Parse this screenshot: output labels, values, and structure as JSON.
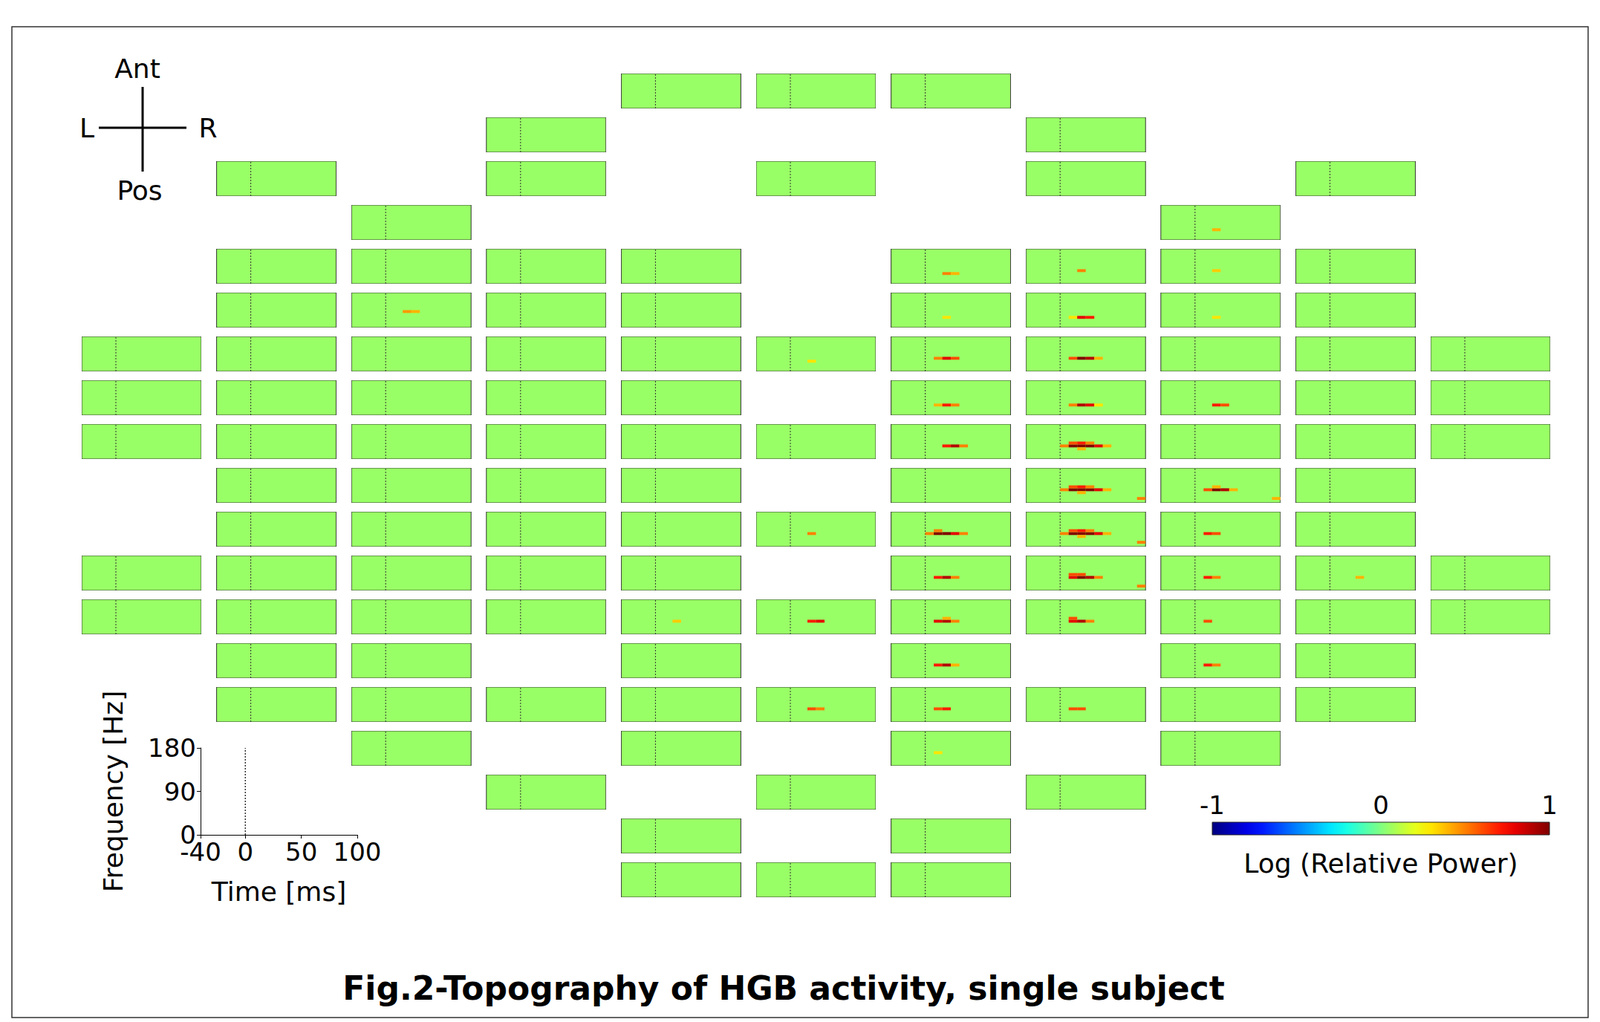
{
  "chart_data": {
    "type": "heatmap",
    "title": "Fig.2-Topography of HGB activity, single subject",
    "x_label": "Time [ms]",
    "y_label": "Frequency [Hz]",
    "xlim": [
      -40,
      100
    ],
    "xticks": [
      -40,
      0,
      50,
      100
    ],
    "ylim": [
      0,
      180
    ],
    "yticks": [
      0,
      90,
      180
    ],
    "onset": 0,
    "time_bins": [
      -40,
      -30,
      -20,
      -10,
      0,
      10,
      20,
      30,
      40,
      50,
      60,
      70,
      80,
      90,
      100
    ],
    "freq_bins": [
      0,
      15,
      30,
      45,
      60,
      75,
      90,
      105,
      120,
      135,
      150,
      165,
      180
    ],
    "fill": 0.05,
    "colorbar": {
      "label": "Log (Relative Power)",
      "range": [
        -1,
        1
      ],
      "ticks": [
        -1,
        0,
        1
      ]
    },
    "orientation": {
      "anterior": "Ant",
      "posterior": "Pos",
      "left": "L",
      "right": "R"
    },
    "panels": [
      {
        "row": 0,
        "col": 4
      },
      {
        "row": 0,
        "col": 5
      },
      {
        "row": 0,
        "col": 6
      },
      {
        "row": 1,
        "col": 3
      },
      {
        "row": 1,
        "col": 7
      },
      {
        "row": 2,
        "col": 1
      },
      {
        "row": 2,
        "col": 3
      },
      {
        "row": 2,
        "col": 5
      },
      {
        "row": 2,
        "col": 7
      },
      {
        "row": 2,
        "col": 9
      },
      {
        "row": 3,
        "col": 2
      },
      {
        "row": 3,
        "col": 8,
        "cells": [
          [
            20,
            45,
            0.4
          ]
        ]
      },
      {
        "row": 4,
        "col": 1
      },
      {
        "row": 4,
        "col": 2
      },
      {
        "row": 4,
        "col": 3
      },
      {
        "row": 4,
        "col": 4
      },
      {
        "row": 4,
        "col": 6,
        "cells": [
          [
            20,
            45,
            0.5
          ],
          [
            30,
            45,
            0.4
          ]
        ]
      },
      {
        "row": 4,
        "col": 7,
        "cells": [
          [
            20,
            60,
            0.5
          ]
        ]
      },
      {
        "row": 4,
        "col": 8,
        "cells": [
          [
            20,
            60,
            0.35
          ]
        ]
      },
      {
        "row": 4,
        "col": 9
      },
      {
        "row": 5,
        "col": 1
      },
      {
        "row": 5,
        "col": 2,
        "cells": [
          [
            20,
            75,
            0.45
          ],
          [
            30,
            75,
            0.4
          ]
        ]
      },
      {
        "row": 5,
        "col": 3
      },
      {
        "row": 5,
        "col": 4
      },
      {
        "row": 5,
        "col": 6,
        "cells": [
          [
            20,
            45,
            0.3
          ]
        ]
      },
      {
        "row": 5,
        "col": 7,
        "cells": [
          [
            10,
            45,
            0.3
          ],
          [
            20,
            45,
            0.8
          ],
          [
            30,
            45,
            0.7
          ]
        ]
      },
      {
        "row": 5,
        "col": 8,
        "cells": [
          [
            20,
            45,
            0.3
          ]
        ]
      },
      {
        "row": 5,
        "col": 9
      },
      {
        "row": 6,
        "col": 0
      },
      {
        "row": 6,
        "col": 1
      },
      {
        "row": 6,
        "col": 2
      },
      {
        "row": 6,
        "col": 3
      },
      {
        "row": 6,
        "col": 4
      },
      {
        "row": 6,
        "col": 5,
        "cells": [
          [
            20,
            45,
            0.3
          ]
        ]
      },
      {
        "row": 6,
        "col": 6,
        "cells": [
          [
            10,
            60,
            0.5
          ],
          [
            20,
            60,
            0.8
          ],
          [
            30,
            60,
            0.6
          ]
        ]
      },
      {
        "row": 6,
        "col": 7,
        "cells": [
          [
            10,
            60,
            0.6
          ],
          [
            20,
            60,
            1
          ],
          [
            30,
            60,
            0.9
          ],
          [
            40,
            60,
            0.4
          ]
        ]
      },
      {
        "row": 6,
        "col": 8
      },
      {
        "row": 6,
        "col": 9
      },
      {
        "row": 6,
        "col": 10
      },
      {
        "row": 7,
        "col": 0
      },
      {
        "row": 7,
        "col": 1
      },
      {
        "row": 7,
        "col": 2
      },
      {
        "row": 7,
        "col": 3
      },
      {
        "row": 7,
        "col": 4
      },
      {
        "row": 7,
        "col": 6,
        "cells": [
          [
            10,
            45,
            0.4
          ],
          [
            20,
            45,
            0.7
          ],
          [
            30,
            45,
            0.5
          ]
        ]
      },
      {
        "row": 7,
        "col": 7,
        "cells": [
          [
            10,
            45,
            0.5
          ],
          [
            20,
            45,
            0.9
          ],
          [
            30,
            45,
            0.8
          ],
          [
            40,
            45,
            0.3
          ]
        ]
      },
      {
        "row": 7,
        "col": 8,
        "cells": [
          [
            20,
            45,
            0.7
          ],
          [
            30,
            45,
            0.6
          ]
        ]
      },
      {
        "row": 7,
        "col": 9
      },
      {
        "row": 7,
        "col": 10
      },
      {
        "row": 8,
        "col": 0
      },
      {
        "row": 8,
        "col": 1
      },
      {
        "row": 8,
        "col": 2
      },
      {
        "row": 8,
        "col": 3
      },
      {
        "row": 8,
        "col": 4
      },
      {
        "row": 8,
        "col": 5
      },
      {
        "row": 8,
        "col": 6,
        "cells": [
          [
            20,
            60,
            0.7
          ],
          [
            30,
            60,
            0.9
          ],
          [
            40,
            60,
            0.5
          ]
        ]
      },
      {
        "row": 8,
        "col": 7,
        "cells": [
          [
            0,
            60,
            0.5
          ],
          [
            10,
            60,
            1
          ],
          [
            20,
            60,
            1
          ],
          [
            30,
            60,
            1
          ],
          [
            40,
            60,
            0.8
          ],
          [
            50,
            60,
            0.4
          ],
          [
            10,
            75,
            0.6
          ],
          [
            20,
            75,
            0.7
          ],
          [
            30,
            75,
            0.5
          ],
          [
            20,
            45,
            0.4
          ]
        ]
      },
      {
        "row": 8,
        "col": 8
      },
      {
        "row": 8,
        "col": 9
      },
      {
        "row": 8,
        "col": 10
      },
      {
        "row": 9,
        "col": 1
      },
      {
        "row": 9,
        "col": 2
      },
      {
        "row": 9,
        "col": 3
      },
      {
        "row": 9,
        "col": 4
      },
      {
        "row": 9,
        "col": 6
      },
      {
        "row": 9,
        "col": 7,
        "cells": [
          [
            0,
            60,
            0.5
          ],
          [
            10,
            60,
            1
          ],
          [
            20,
            60,
            1
          ],
          [
            30,
            60,
            1
          ],
          [
            40,
            60,
            0.8
          ],
          [
            50,
            60,
            0.4
          ],
          [
            10,
            75,
            0.6
          ],
          [
            20,
            75,
            0.7
          ],
          [
            30,
            75,
            0.5
          ],
          [
            20,
            45,
            0.4
          ],
          [
            90,
            15,
            0.5
          ]
        ]
      },
      {
        "row": 9,
        "col": 8,
        "cells": [
          [
            10,
            60,
            0.6
          ],
          [
            20,
            60,
            1
          ],
          [
            30,
            60,
            0.9
          ],
          [
            40,
            60,
            0.4
          ],
          [
            20,
            75,
            0.4
          ],
          [
            90,
            15,
            0.4
          ]
        ]
      },
      {
        "row": 9,
        "col": 9
      },
      {
        "row": 10,
        "col": 1
      },
      {
        "row": 10,
        "col": 2
      },
      {
        "row": 10,
        "col": 3
      },
      {
        "row": 10,
        "col": 4
      },
      {
        "row": 10,
        "col": 5,
        "cells": [
          [
            20,
            60,
            0.5
          ]
        ]
      },
      {
        "row": 10,
        "col": 6,
        "cells": [
          [
            0,
            60,
            0.5
          ],
          [
            10,
            60,
            1
          ],
          [
            20,
            60,
            1
          ],
          [
            30,
            60,
            0.8
          ],
          [
            40,
            60,
            0.5
          ],
          [
            10,
            75,
            0.5
          ]
        ]
      },
      {
        "row": 10,
        "col": 7,
        "cells": [
          [
            0,
            60,
            0.5
          ],
          [
            10,
            60,
            1
          ],
          [
            20,
            60,
            1
          ],
          [
            30,
            60,
            1
          ],
          [
            40,
            60,
            0.8
          ],
          [
            50,
            60,
            0.4
          ],
          [
            10,
            75,
            0.6
          ],
          [
            20,
            75,
            0.7
          ],
          [
            30,
            75,
            0.5
          ],
          [
            20,
            45,
            0.4
          ],
          [
            90,
            15,
            0.5
          ]
        ]
      },
      {
        "row": 10,
        "col": 8,
        "cells": [
          [
            10,
            60,
            0.7
          ],
          [
            20,
            60,
            0.6
          ]
        ]
      },
      {
        "row": 10,
        "col": 9
      },
      {
        "row": 11,
        "col": 0
      },
      {
        "row": 11,
        "col": 1
      },
      {
        "row": 11,
        "col": 2
      },
      {
        "row": 11,
        "col": 3
      },
      {
        "row": 11,
        "col": 4
      },
      {
        "row": 11,
        "col": 6,
        "cells": [
          [
            10,
            60,
            0.7
          ],
          [
            20,
            60,
            0.9
          ],
          [
            30,
            60,
            0.5
          ]
        ]
      },
      {
        "row": 11,
        "col": 7,
        "cells": [
          [
            10,
            60,
            0.8
          ],
          [
            20,
            60,
            1
          ],
          [
            30,
            60,
            0.9
          ],
          [
            40,
            60,
            0.5
          ],
          [
            10,
            75,
            0.6
          ],
          [
            20,
            75,
            0.6
          ],
          [
            90,
            15,
            0.5
          ]
        ]
      },
      {
        "row": 11,
        "col": 8,
        "cells": [
          [
            10,
            60,
            0.7
          ],
          [
            20,
            60,
            0.5
          ]
        ]
      },
      {
        "row": 11,
        "col": 9,
        "cells": [
          [
            30,
            60,
            0.4
          ]
        ]
      },
      {
        "row": 11,
        "col": 10
      },
      {
        "row": 12,
        "col": 0
      },
      {
        "row": 12,
        "col": 1
      },
      {
        "row": 12,
        "col": 2
      },
      {
        "row": 12,
        "col": 3
      },
      {
        "row": 12,
        "col": 4,
        "cells": [
          [
            20,
            60,
            0.35
          ]
        ]
      },
      {
        "row": 12,
        "col": 5,
        "cells": [
          [
            20,
            60,
            0.7
          ],
          [
            30,
            60,
            0.8
          ]
        ]
      },
      {
        "row": 12,
        "col": 6,
        "cells": [
          [
            10,
            60,
            0.8
          ],
          [
            20,
            60,
            0.9
          ],
          [
            30,
            60,
            0.5
          ],
          [
            20,
            75,
            0.4
          ]
        ]
      },
      {
        "row": 12,
        "col": 7,
        "cells": [
          [
            10,
            60,
            0.8
          ],
          [
            20,
            60,
            0.9
          ],
          [
            30,
            60,
            0.5
          ],
          [
            10,
            75,
            0.6
          ]
        ]
      },
      {
        "row": 12,
        "col": 8,
        "cells": [
          [
            10,
            60,
            0.6
          ]
        ]
      },
      {
        "row": 12,
        "col": 9
      },
      {
        "row": 12,
        "col": 10
      },
      {
        "row": 13,
        "col": 1
      },
      {
        "row": 13,
        "col": 2
      },
      {
        "row": 13,
        "col": 4
      },
      {
        "row": 13,
        "col": 6,
        "cells": [
          [
            10,
            60,
            0.7
          ],
          [
            20,
            60,
            0.9
          ],
          [
            30,
            60,
            0.4
          ]
        ]
      },
      {
        "row": 13,
        "col": 8,
        "cells": [
          [
            10,
            60,
            0.7
          ],
          [
            20,
            60,
            0.5
          ]
        ]
      },
      {
        "row": 13,
        "col": 9
      },
      {
        "row": 14,
        "col": 1
      },
      {
        "row": 14,
        "col": 2
      },
      {
        "row": 14,
        "col": 3
      },
      {
        "row": 14,
        "col": 4
      },
      {
        "row": 14,
        "col": 5,
        "cells": [
          [
            20,
            60,
            0.6
          ],
          [
            30,
            60,
            0.5
          ]
        ]
      },
      {
        "row": 14,
        "col": 6,
        "cells": [
          [
            10,
            60,
            0.6
          ],
          [
            20,
            60,
            0.7
          ]
        ]
      },
      {
        "row": 14,
        "col": 7,
        "cells": [
          [
            10,
            60,
            0.6
          ],
          [
            20,
            60,
            0.6
          ]
        ]
      },
      {
        "row": 14,
        "col": 8
      },
      {
        "row": 14,
        "col": 9
      },
      {
        "row": 15,
        "col": 2
      },
      {
        "row": 15,
        "col": 4
      },
      {
        "row": 15,
        "col": 6,
        "cells": [
          [
            10,
            60,
            0.3
          ]
        ]
      },
      {
        "row": 15,
        "col": 8
      },
      {
        "row": 16,
        "col": 3
      },
      {
        "row": 16,
        "col": 5
      },
      {
        "row": 16,
        "col": 7
      },
      {
        "row": 17,
        "col": 4
      },
      {
        "row": 17,
        "col": 6
      },
      {
        "row": 18,
        "col": 4
      },
      {
        "row": 18,
        "col": 5
      },
      {
        "row": 18,
        "col": 6
      }
    ]
  }
}
